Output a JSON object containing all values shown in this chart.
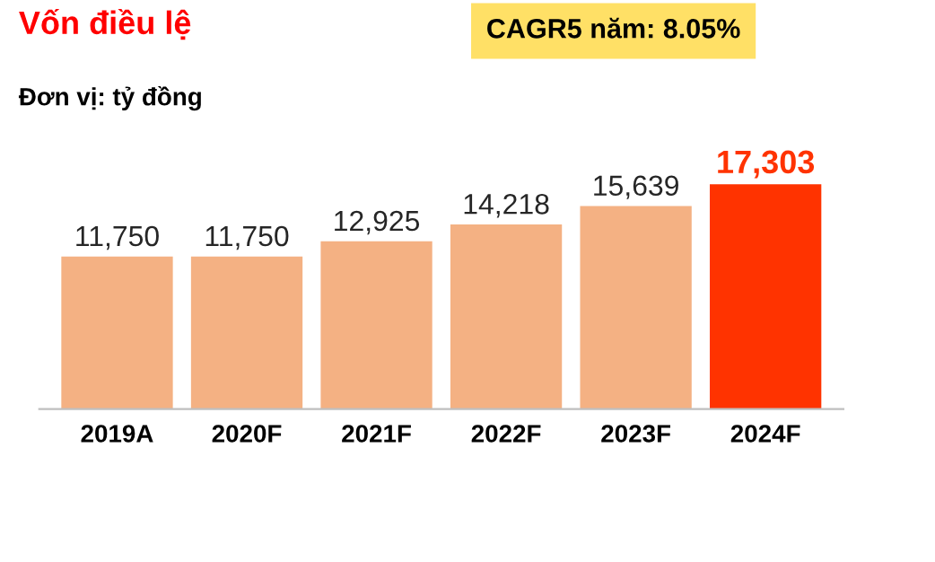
{
  "chart_data": {
    "type": "bar",
    "title": "Vốn điều lệ",
    "subtitle": "Đơn vị: tỷ đồng",
    "annotations": [
      "CAGR5 năm: 8.05%"
    ],
    "categories": [
      "2019A",
      "2020F",
      "2021F",
      "2022F",
      "2023F",
      "2024F"
    ],
    "values": [
      11750,
      11750,
      12925,
      14218,
      15639,
      17303
    ],
    "colors": [
      "#f4b183",
      "#f4b183",
      "#f4b183",
      "#f4b183",
      "#f4b183",
      "#ff3300"
    ],
    "value_labels": [
      "11,750",
      "11,750",
      "12,925",
      "14,218",
      "15,639",
      "17,303"
    ],
    "tick_labels": "x",
    "grid": false,
    "legend": false
  }
}
